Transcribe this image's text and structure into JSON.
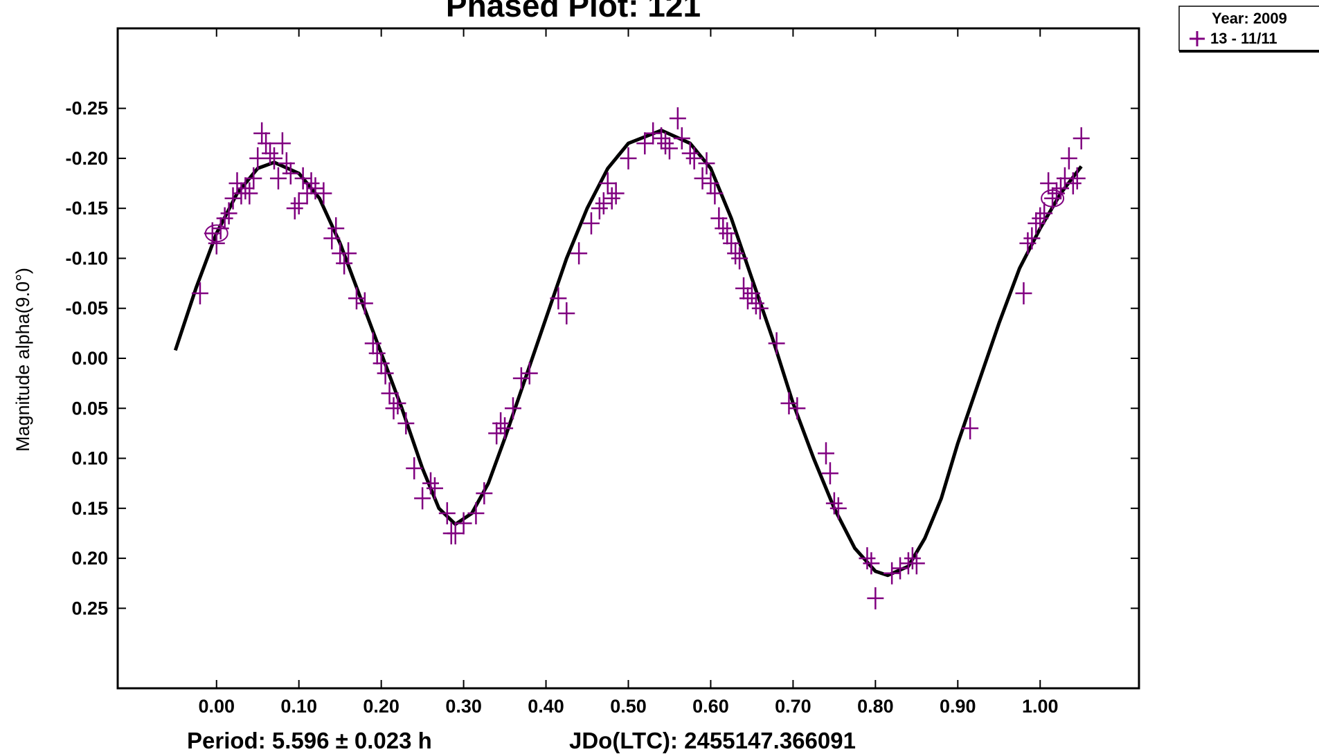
{
  "chart_data": {
    "type": "scatter",
    "title": "Phased Plot: 121",
    "ylabel": "Magnitude alpha(9.0°)",
    "footer": {
      "period": "Period: 5.596 ± 0.023 h",
      "epoch": "JDo(LTC): 2455147.366091"
    },
    "legend": {
      "title": "Year: 2009",
      "entry": "13 - 11/11",
      "position": "top-right"
    },
    "xlim": [
      -0.12,
      1.12
    ],
    "ylim": [
      0.33,
      -0.33
    ],
    "y_inverted": true,
    "x_ticks": [
      "0.00",
      "0.10",
      "0.20",
      "0.30",
      "0.40",
      "0.50",
      "0.60",
      "0.70",
      "0.80",
      "0.90",
      "1.00"
    ],
    "x_tick_values": [
      0.0,
      0.1,
      0.2,
      0.3,
      0.4,
      0.5,
      0.6,
      0.7,
      0.8,
      0.9,
      1.0
    ],
    "y_ticks": [
      "-0.25",
      "-0.20",
      "-0.15",
      "-0.10",
      "-0.05",
      "0.00",
      "0.05",
      "0.10",
      "0.15",
      "0.20",
      "0.25"
    ],
    "y_tick_values": [
      -0.25,
      -0.2,
      -0.15,
      -0.1,
      -0.05,
      0.0,
      0.05,
      0.1,
      0.15,
      0.2,
      0.25
    ],
    "grid": false,
    "point_color": "#800080",
    "curve_color": "#000000",
    "series": [
      {
        "name": "13 - 11/11",
        "marker": "plus",
        "points": [
          [
            -0.02,
            -0.065
          ],
          [
            -0.005,
            -0.125
          ],
          [
            0.0,
            -0.115
          ],
          [
            0.005,
            -0.13
          ],
          [
            0.01,
            -0.14
          ],
          [
            0.015,
            -0.145
          ],
          [
            0.02,
            -0.16
          ],
          [
            0.025,
            -0.175
          ],
          [
            0.03,
            -0.165
          ],
          [
            0.035,
            -0.17
          ],
          [
            0.04,
            -0.165
          ],
          [
            0.045,
            -0.18
          ],
          [
            0.05,
            -0.2
          ],
          [
            0.055,
            -0.225
          ],
          [
            0.06,
            -0.215
          ],
          [
            0.065,
            -0.205
          ],
          [
            0.07,
            -0.2
          ],
          [
            0.075,
            -0.18
          ],
          [
            0.08,
            -0.215
          ],
          [
            0.085,
            -0.195
          ],
          [
            0.09,
            -0.185
          ],
          [
            0.095,
            -0.15
          ],
          [
            0.1,
            -0.155
          ],
          [
            0.105,
            -0.18
          ],
          [
            0.11,
            -0.165
          ],
          [
            0.115,
            -0.175
          ],
          [
            0.12,
            -0.17
          ],
          [
            0.13,
            -0.165
          ],
          [
            0.14,
            -0.12
          ],
          [
            0.145,
            -0.13
          ],
          [
            0.15,
            -0.105
          ],
          [
            0.155,
            -0.095
          ],
          [
            0.16,
            -0.105
          ],
          [
            0.17,
            -0.06
          ],
          [
            0.18,
            -0.055
          ],
          [
            0.19,
            -0.015
          ],
          [
            0.195,
            -0.005
          ],
          [
            0.2,
            0.005
          ],
          [
            0.205,
            0.015
          ],
          [
            0.21,
            0.035
          ],
          [
            0.215,
            0.05
          ],
          [
            0.22,
            0.045
          ],
          [
            0.23,
            0.065
          ],
          [
            0.24,
            0.11
          ],
          [
            0.25,
            0.14
          ],
          [
            0.26,
            0.125
          ],
          [
            0.265,
            0.13
          ],
          [
            0.28,
            0.155
          ],
          [
            0.285,
            0.175
          ],
          [
            0.29,
            0.175
          ],
          [
            0.3,
            0.165
          ],
          [
            0.315,
            0.155
          ],
          [
            0.325,
            0.135
          ],
          [
            0.34,
            0.075
          ],
          [
            0.345,
            0.065
          ],
          [
            0.35,
            0.07
          ],
          [
            0.36,
            0.05
          ],
          [
            0.37,
            0.02
          ],
          [
            0.38,
            0.015
          ],
          [
            0.415,
            -0.06
          ],
          [
            0.425,
            -0.045
          ],
          [
            0.44,
            -0.105
          ],
          [
            0.455,
            -0.135
          ],
          [
            0.465,
            -0.15
          ],
          [
            0.47,
            -0.155
          ],
          [
            0.475,
            -0.175
          ],
          [
            0.48,
            -0.16
          ],
          [
            0.485,
            -0.165
          ],
          [
            0.5,
            -0.2
          ],
          [
            0.52,
            -0.215
          ],
          [
            0.53,
            -0.225
          ],
          [
            0.54,
            -0.22
          ],
          [
            0.545,
            -0.215
          ],
          [
            0.55,
            -0.21
          ],
          [
            0.56,
            -0.24
          ],
          [
            0.565,
            -0.22
          ],
          [
            0.575,
            -0.205
          ],
          [
            0.58,
            -0.2
          ],
          [
            0.59,
            -0.18
          ],
          [
            0.595,
            -0.195
          ],
          [
            0.6,
            -0.175
          ],
          [
            0.605,
            -0.165
          ],
          [
            0.61,
            -0.14
          ],
          [
            0.615,
            -0.13
          ],
          [
            0.62,
            -0.125
          ],
          [
            0.625,
            -0.115
          ],
          [
            0.63,
            -0.105
          ],
          [
            0.635,
            -0.1
          ],
          [
            0.64,
            -0.07
          ],
          [
            0.645,
            -0.06
          ],
          [
            0.65,
            -0.065
          ],
          [
            0.655,
            -0.055
          ],
          [
            0.66,
            -0.05
          ],
          [
            0.68,
            -0.015
          ],
          [
            0.695,
            0.045
          ],
          [
            0.705,
            0.05
          ],
          [
            0.74,
            0.095
          ],
          [
            0.745,
            0.115
          ],
          [
            0.75,
            0.145
          ],
          [
            0.755,
            0.15
          ],
          [
            0.79,
            0.2
          ],
          [
            0.795,
            0.205
          ],
          [
            0.8,
            0.24
          ],
          [
            0.82,
            0.215
          ],
          [
            0.83,
            0.21
          ],
          [
            0.84,
            0.205
          ],
          [
            0.845,
            0.2
          ],
          [
            0.85,
            0.205
          ],
          [
            0.915,
            0.07
          ],
          [
            0.98,
            -0.065
          ],
          [
            0.985,
            -0.115
          ],
          [
            0.99,
            -0.12
          ],
          [
            0.995,
            -0.135
          ],
          [
            1.0,
            -0.14
          ],
          [
            1.005,
            -0.145
          ],
          [
            1.01,
            -0.175
          ],
          [
            1.015,
            -0.16
          ],
          [
            1.02,
            -0.165
          ],
          [
            1.025,
            -0.17
          ],
          [
            1.03,
            -0.18
          ],
          [
            1.035,
            -0.2
          ],
          [
            1.04,
            -0.175
          ],
          [
            1.045,
            -0.18
          ],
          [
            1.05,
            -0.22
          ]
        ]
      }
    ],
    "fit_curve": [
      [
        -0.05,
        -0.008
      ],
      [
        -0.025,
        -0.07
      ],
      [
        0.0,
        -0.125
      ],
      [
        0.025,
        -0.165
      ],
      [
        0.05,
        -0.19
      ],
      [
        0.07,
        -0.196
      ],
      [
        0.1,
        -0.185
      ],
      [
        0.125,
        -0.16
      ],
      [
        0.15,
        -0.115
      ],
      [
        0.175,
        -0.06
      ],
      [
        0.2,
        -0.005
      ],
      [
        0.225,
        0.05
      ],
      [
        0.25,
        0.11
      ],
      [
        0.27,
        0.15
      ],
      [
        0.29,
        0.166
      ],
      [
        0.31,
        0.155
      ],
      [
        0.33,
        0.125
      ],
      [
        0.35,
        0.08
      ],
      [
        0.375,
        0.02
      ],
      [
        0.4,
        -0.04
      ],
      [
        0.425,
        -0.1
      ],
      [
        0.45,
        -0.15
      ],
      [
        0.475,
        -0.19
      ],
      [
        0.5,
        -0.215
      ],
      [
        0.54,
        -0.228
      ],
      [
        0.575,
        -0.215
      ],
      [
        0.6,
        -0.19
      ],
      [
        0.625,
        -0.14
      ],
      [
        0.65,
        -0.08
      ],
      [
        0.675,
        -0.02
      ],
      [
        0.7,
        0.045
      ],
      [
        0.725,
        0.1
      ],
      [
        0.75,
        0.15
      ],
      [
        0.775,
        0.19
      ],
      [
        0.8,
        0.213
      ],
      [
        0.815,
        0.217
      ],
      [
        0.84,
        0.208
      ],
      [
        0.86,
        0.18
      ],
      [
        0.88,
        0.14
      ],
      [
        0.9,
        0.085
      ],
      [
        0.925,
        0.025
      ],
      [
        0.95,
        -0.035
      ],
      [
        0.975,
        -0.09
      ],
      [
        1.0,
        -0.13
      ],
      [
        1.025,
        -0.165
      ],
      [
        1.05,
        -0.192
      ]
    ],
    "circled_points": [
      [
        0.0,
        -0.125
      ],
      [
        1.015,
        -0.16
      ]
    ]
  }
}
